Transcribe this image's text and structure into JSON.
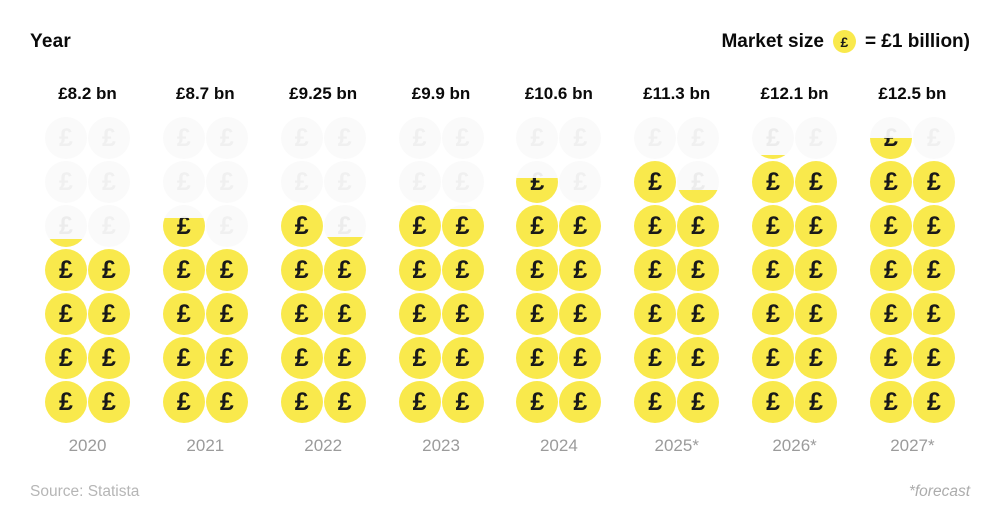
{
  "header": {
    "axis_label": "Year",
    "legend": {
      "prefix": "Market size",
      "coin_symbol": "£",
      "suffix": "= £1 billion)"
    }
  },
  "footer": {
    "source": "Source: Statista",
    "forecast_note": "*forecast"
  },
  "colors": {
    "coin_yellow": "#F9E94C",
    "coin_glyph": "#191919",
    "ghost_coin": "#FAFAFA",
    "ghost_glyph": "#F0F0F0",
    "year_label": "#9B9B9B",
    "source_text": "#B6B6B6"
  },
  "chart_data": {
    "type": "bar",
    "subtype": "pictogram",
    "title": "Market size (£ = £1 billion)",
    "xlabel": "Year",
    "ylabel": "Market size (£ billion)",
    "icon_symbol": "£",
    "icon_unit_value": 1,
    "unit": "£ billion",
    "categories": [
      "2020",
      "2021",
      "2022",
      "2023",
      "2024",
      "2025*",
      "2026*",
      "2027*"
    ],
    "values": [
      8.2,
      8.7,
      9.25,
      9.9,
      10.6,
      11.3,
      12.1,
      12.5
    ],
    "value_labels": [
      "£8.2 bn",
      "£8.7 bn",
      "£9.25 bn",
      "£9.9 bn",
      "£10.6 bn",
      "£11.3 bn",
      "£12.1 bn",
      "£12.5 bn"
    ],
    "forecast_categories": [
      "2025*",
      "2026*",
      "2027*"
    ],
    "grid": {
      "rows": 7,
      "cols": 2,
      "max_slots": 14
    },
    "ylim": [
      0,
      14
    ],
    "legend_note": "£ = £1 billion",
    "source": "Statista"
  }
}
